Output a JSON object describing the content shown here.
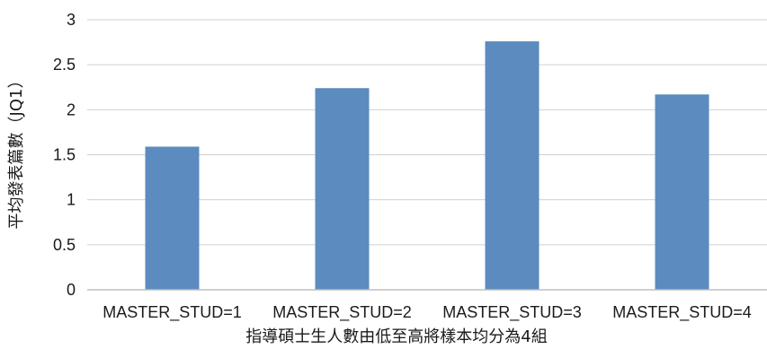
{
  "chart_data": {
    "type": "bar",
    "title": "",
    "xlabel": "指導碩士生人數由低至高將樣本均分為4組",
    "ylabel": "平均發表篇數（JQ1）",
    "categories": [
      "MASTER_STUD=1",
      "MASTER_STUD=2",
      "MASTER_STUD=3",
      "MASTER_STUD=4"
    ],
    "values": [
      1.59,
      2.24,
      2.76,
      2.17
    ],
    "ylim": [
      0,
      3
    ],
    "yticks": [
      "0",
      "0.5",
      "1",
      "1.5",
      "2",
      "2.5",
      "3"
    ],
    "grid": true,
    "legend": "none",
    "bar_color": "#5b8bbf",
    "grid_color": "#d0d0d0",
    "axis_color": "#bfbfbf"
  }
}
